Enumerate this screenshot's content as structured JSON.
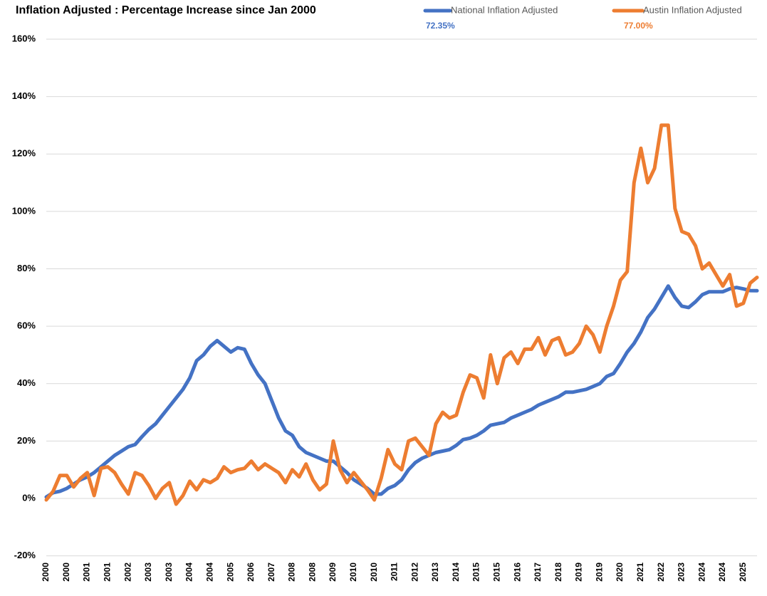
{
  "chart_data": {
    "type": "line",
    "title": "Inflation Adjusted : Percentage Increase since Jan 2000",
    "categories": [
      "2000",
      null,
      null,
      "2000",
      null,
      null,
      "2001",
      null,
      null,
      "2001",
      null,
      null,
      "2002",
      null,
      null,
      "2003",
      null,
      null,
      "2003",
      null,
      null,
      "2004",
      null,
      null,
      "2004",
      null,
      null,
      "2005",
      null,
      null,
      "2006",
      null,
      null,
      "2007",
      null,
      null,
      "2008",
      null,
      null,
      "2008",
      null,
      null,
      "2009",
      null,
      null,
      "2010",
      null,
      null,
      "2010",
      null,
      null,
      "2011",
      null,
      null,
      "2012",
      null,
      null,
      "2013",
      null,
      null,
      "2014",
      null,
      null,
      "2015",
      null,
      null,
      "2015",
      null,
      null,
      "2016",
      null,
      null,
      "2017",
      null,
      null,
      "2018",
      null,
      null,
      "2019",
      null,
      null,
      "2019",
      null,
      null,
      "2020",
      null,
      null,
      "2021",
      null,
      null,
      "2022",
      null,
      null,
      "2023",
      null,
      null,
      "2024",
      null,
      null,
      "2024",
      null,
      null,
      "2025",
      null,
      null
    ],
    "series": [
      {
        "name": "National Inflation Adjusted",
        "color": "#4472c4",
        "values": [
          0.5,
          2,
          2.5,
          3.5,
          5,
          6.5,
          7.5,
          9,
          11,
          13,
          15,
          16.5,
          18,
          18.8,
          21.5,
          24,
          26,
          29,
          32,
          35,
          38,
          42,
          48,
          50,
          53,
          55,
          53,
          51,
          52.5,
          52,
          47,
          43,
          40,
          34,
          28,
          23.5,
          22,
          18,
          16,
          15,
          14,
          13,
          13,
          11,
          9,
          6.5,
          5,
          3.5,
          1.5,
          1.5,
          3.5,
          4.5,
          6.5,
          10,
          12.5,
          14,
          15,
          16,
          16.5,
          17,
          18.5,
          20.5,
          21,
          22,
          23.5,
          25.5,
          26,
          26.5,
          28,
          29,
          30,
          31,
          32.5,
          33.5,
          34.5,
          35.5,
          37,
          37,
          37.5,
          38,
          39,
          40,
          42.5,
          43.5,
          47,
          51,
          54,
          58,
          63,
          66,
          70,
          74,
          70,
          67,
          66.5,
          68.5,
          71,
          72,
          72,
          72,
          73,
          73.5,
          73,
          72.4,
          72.35
        ]
      },
      {
        "name": "Austin Inflation Adjusted",
        "color": "#ed7d31",
        "values": [
          -0.5,
          2.5,
          8,
          8,
          4,
          7,
          9,
          1,
          10.5,
          11,
          9,
          5,
          1.5,
          9,
          8,
          4.5,
          0,
          3.5,
          5.5,
          -2,
          1,
          6,
          3,
          6.5,
          5.5,
          7,
          11,
          9,
          10,
          10.5,
          13,
          10,
          12,
          10.5,
          9,
          5.5,
          10,
          7.5,
          12,
          6.5,
          3,
          5,
          20,
          10,
          5.5,
          9,
          6,
          3,
          -0.5,
          7,
          17,
          12,
          10,
          20,
          21,
          18,
          15,
          26,
          30,
          28,
          29,
          37,
          43,
          42,
          35,
          50,
          40,
          49,
          51,
          47,
          52,
          52,
          56,
          50,
          55,
          56,
          50,
          51,
          54,
          60,
          57,
          51,
          60,
          67,
          76,
          79,
          110,
          122,
          110,
          115,
          130,
          130,
          101,
          93,
          92,
          88,
          80,
          82,
          78,
          74,
          78,
          67,
          68,
          75,
          77
        ]
      }
    ],
    "annotations": [
      "72.35%",
      "77.00%"
    ],
    "ylim": [
      -20,
      160
    ],
    "yticks": [
      {
        "value": -20,
        "label": "-20%"
      },
      {
        "value": 0,
        "label": "0%"
      },
      {
        "value": 20,
        "label": "20%"
      },
      {
        "value": 40,
        "label": "40%"
      },
      {
        "value": 60,
        "label": "60%"
      },
      {
        "value": 80,
        "label": "80%"
      },
      {
        "value": 100,
        "label": "100%"
      },
      {
        "value": 120,
        "label": "120%"
      },
      {
        "value": 140,
        "label": "140%"
      },
      {
        "value": 160,
        "label": "160%"
      }
    ],
    "grid": true
  }
}
